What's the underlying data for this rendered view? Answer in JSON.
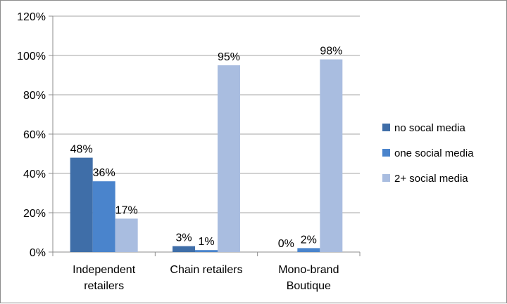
{
  "chart_data": {
    "type": "bar",
    "categories": [
      [
        "Independent",
        "retailers"
      ],
      [
        "Chain retailers"
      ],
      [
        "Mono-brand",
        "Boutique"
      ]
    ],
    "series": [
      {
        "name": "no socal media",
        "color": "#3f6ea8",
        "values": [
          48,
          3,
          0
        ],
        "labels": [
          "48%",
          "3%",
          "0%"
        ]
      },
      {
        "name": "one social media",
        "color": "#4a84cc",
        "values": [
          36,
          1,
          2
        ],
        "labels": [
          "36%",
          "1%",
          "2%"
        ]
      },
      {
        "name": "2+ social media",
        "color": "#a9bde0",
        "values": [
          17,
          95,
          98
        ],
        "labels": [
          "17%",
          "95%",
          "98%"
        ]
      }
    ],
    "ylim": [
      0,
      120
    ],
    "yticks": [
      0,
      20,
      40,
      60,
      80,
      100,
      120
    ],
    "ytick_labels": [
      "0%",
      "20%",
      "40%",
      "60%",
      "80%",
      "100%",
      "120%"
    ],
    "grid": true,
    "legend_position": "right"
  }
}
